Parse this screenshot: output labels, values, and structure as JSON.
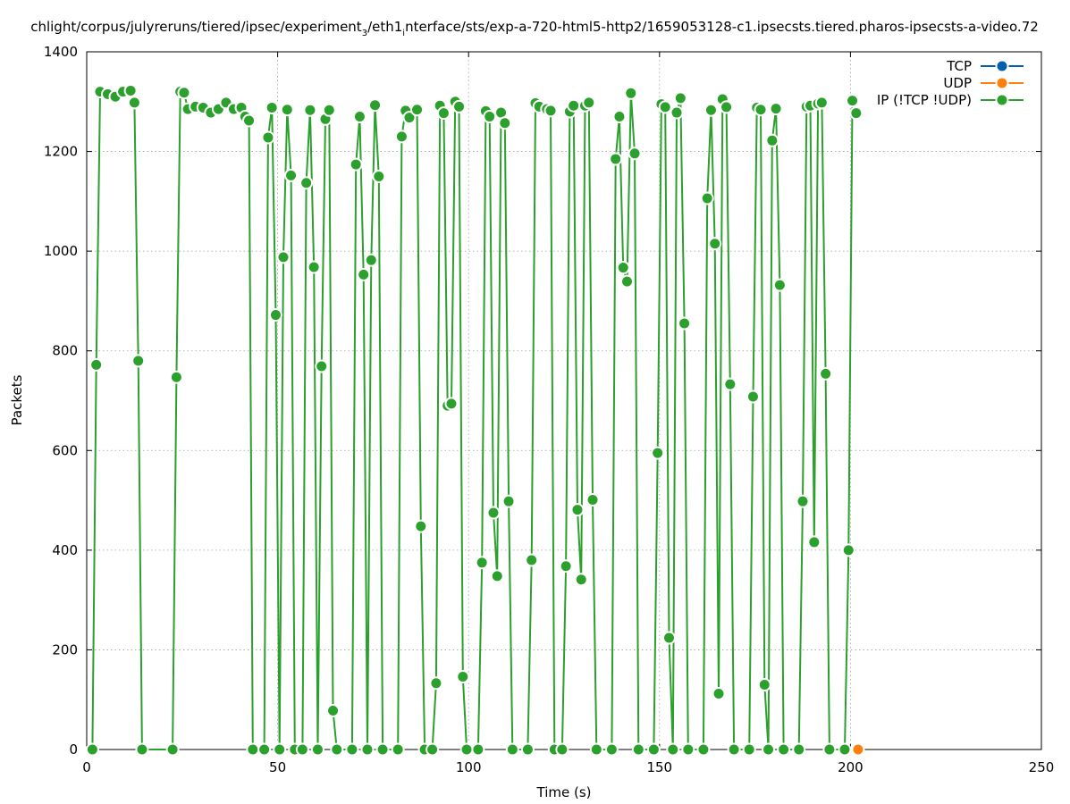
{
  "chart_data": {
    "type": "line",
    "title": "chlight/corpus/julyreruns/tiered/ipsec/experiment",
    "title_sub": "3",
    "title_mid": "/eth1",
    "title_sub2": "i",
    "title_end": "nterface/sts/exp-a-720-html5-http2/1659053128-c1.ipsecsts.tiered.pharos-ipsecsts-a-video.72",
    "xlabel": "Time (s)",
    "ylabel": "Packets",
    "xlim": [
      0,
      250
    ],
    "ylim": [
      0,
      1400
    ],
    "xticks": [
      0,
      50,
      100,
      150,
      200,
      250
    ],
    "yticks": [
      0,
      200,
      400,
      600,
      800,
      1000,
      1200,
      1400
    ],
    "grid": true,
    "legend_position": "top-right",
    "series": [
      {
        "name": "TCP",
        "color": "#0060ad",
        "points": []
      },
      {
        "name": "UDP",
        "color": "#ff7f0e",
        "points": [
          [
            202,
            0
          ]
        ]
      },
      {
        "name": "IP (!TCP  !UDP)",
        "color": "#2ca02c",
        "points": [
          [
            1.5,
            0
          ],
          [
            2.5,
            772
          ],
          [
            3.5,
            1320
          ],
          [
            5.5,
            1315
          ],
          [
            7.5,
            1310
          ],
          [
            9.5,
            1320
          ],
          [
            11.5,
            1322
          ],
          [
            12.5,
            1298
          ],
          [
            13.5,
            780
          ],
          [
            14.5,
            0
          ],
          [
            22.5,
            0
          ],
          [
            23.5,
            747
          ],
          [
            24.5,
            1320
          ],
          [
            25.5,
            1318
          ],
          [
            26.5,
            1285
          ],
          [
            28.5,
            1290
          ],
          [
            30.5,
            1288
          ],
          [
            32.5,
            1278
          ],
          [
            34.5,
            1285
          ],
          [
            36.5,
            1298
          ],
          [
            38.5,
            1285
          ],
          [
            40.5,
            1288
          ],
          [
            41.5,
            1270
          ],
          [
            42.5,
            1262
          ],
          [
            43.5,
            0
          ],
          [
            46.5,
            0
          ],
          [
            47.5,
            1228
          ],
          [
            48.5,
            1288
          ],
          [
            49.5,
            872
          ],
          [
            50.5,
            0
          ],
          [
            51.5,
            988
          ],
          [
            52.5,
            1284
          ],
          [
            53.5,
            1152
          ],
          [
            54.5,
            0
          ],
          [
            56.5,
            0
          ],
          [
            57.5,
            1137
          ],
          [
            58.5,
            1283
          ],
          [
            59.5,
            968
          ],
          [
            60.5,
            0
          ],
          [
            61.5,
            769
          ],
          [
            62.5,
            1265
          ],
          [
            63.5,
            1283
          ],
          [
            64.5,
            78
          ],
          [
            65.5,
            0
          ],
          [
            69.5,
            0
          ],
          [
            70.5,
            1174
          ],
          [
            71.5,
            1270
          ],
          [
            72.5,
            953
          ],
          [
            73.5,
            0
          ],
          [
            74.5,
            982
          ],
          [
            75.5,
            1293
          ],
          [
            76.5,
            1150
          ],
          [
            77.5,
            0
          ],
          [
            81.5,
            0
          ],
          [
            82.5,
            1230
          ],
          [
            83.5,
            1282
          ],
          [
            84.5,
            1268
          ],
          [
            86.5,
            1284
          ],
          [
            87.5,
            448
          ],
          [
            88.5,
            0
          ],
          [
            90.5,
            0
          ],
          [
            91.5,
            133
          ],
          [
            92.5,
            1292
          ],
          [
            93.5,
            1277
          ],
          [
            94.5,
            690
          ],
          [
            95.5,
            694
          ],
          [
            96.5,
            1300
          ],
          [
            97.5,
            1290
          ],
          [
            98.5,
            146
          ],
          [
            99.5,
            0
          ],
          [
            102.5,
            0
          ],
          [
            103.5,
            375
          ],
          [
            104.5,
            1281
          ],
          [
            105.5,
            1270
          ],
          [
            106.5,
            475
          ],
          [
            107.5,
            348
          ],
          [
            108.5,
            1278
          ],
          [
            109.5,
            1257
          ],
          [
            110.5,
            498
          ],
          [
            111.5,
            0
          ],
          [
            115.5,
            0
          ],
          [
            116.5,
            380
          ],
          [
            117.5,
            1297
          ],
          [
            118.5,
            1290
          ],
          [
            120.5,
            1285
          ],
          [
            121.5,
            1282
          ],
          [
            122.5,
            0
          ],
          [
            124.5,
            0
          ],
          [
            125.5,
            368
          ],
          [
            126.5,
            1280
          ],
          [
            127.5,
            1292
          ],
          [
            128.5,
            481
          ],
          [
            129.5,
            341
          ],
          [
            130.5,
            1292
          ],
          [
            131.5,
            1298
          ],
          [
            132.5,
            501
          ],
          [
            133.5,
            0
          ],
          [
            137.5,
            0
          ],
          [
            138.5,
            1185
          ],
          [
            139.5,
            1270
          ],
          [
            140.5,
            967
          ],
          [
            141.5,
            939
          ],
          [
            142.5,
            1317
          ],
          [
            143.5,
            1196
          ],
          [
            144.5,
            0
          ],
          [
            148.5,
            0
          ],
          [
            149.5,
            595
          ],
          [
            150.5,
            1295
          ],
          [
            151.5,
            1289
          ],
          [
            152.5,
            224
          ],
          [
            153.5,
            0
          ],
          [
            154.5,
            1278
          ],
          [
            155.5,
            1307
          ],
          [
            156.5,
            855
          ],
          [
            157.5,
            0
          ],
          [
            161.5,
            0
          ],
          [
            162.5,
            1106
          ],
          [
            163.5,
            1283
          ],
          [
            164.5,
            1015
          ],
          [
            165.5,
            112
          ],
          [
            166.5,
            1305
          ],
          [
            167.5,
            1289
          ],
          [
            168.5,
            733
          ],
          [
            169.5,
            0
          ],
          [
            173.5,
            0
          ],
          [
            174.5,
            708
          ],
          [
            175.5,
            1288
          ],
          [
            176.5,
            1284
          ],
          [
            177.5,
            130
          ],
          [
            178.5,
            0
          ],
          [
            179.5,
            1222
          ],
          [
            180.5,
            1286
          ],
          [
            181.5,
            932
          ],
          [
            182.5,
            0
          ],
          [
            186.5,
            0
          ],
          [
            187.5,
            498
          ],
          [
            188.5,
            1290
          ],
          [
            189.5,
            1292
          ],
          [
            190.5,
            416
          ],
          [
            191.5,
            1296
          ],
          [
            192.5,
            1298
          ],
          [
            193.5,
            754
          ],
          [
            194.5,
            0
          ],
          [
            198.5,
            0
          ],
          [
            199.5,
            400
          ],
          [
            200.5,
            1302
          ],
          [
            201.5,
            1277
          ]
        ]
      }
    ]
  }
}
